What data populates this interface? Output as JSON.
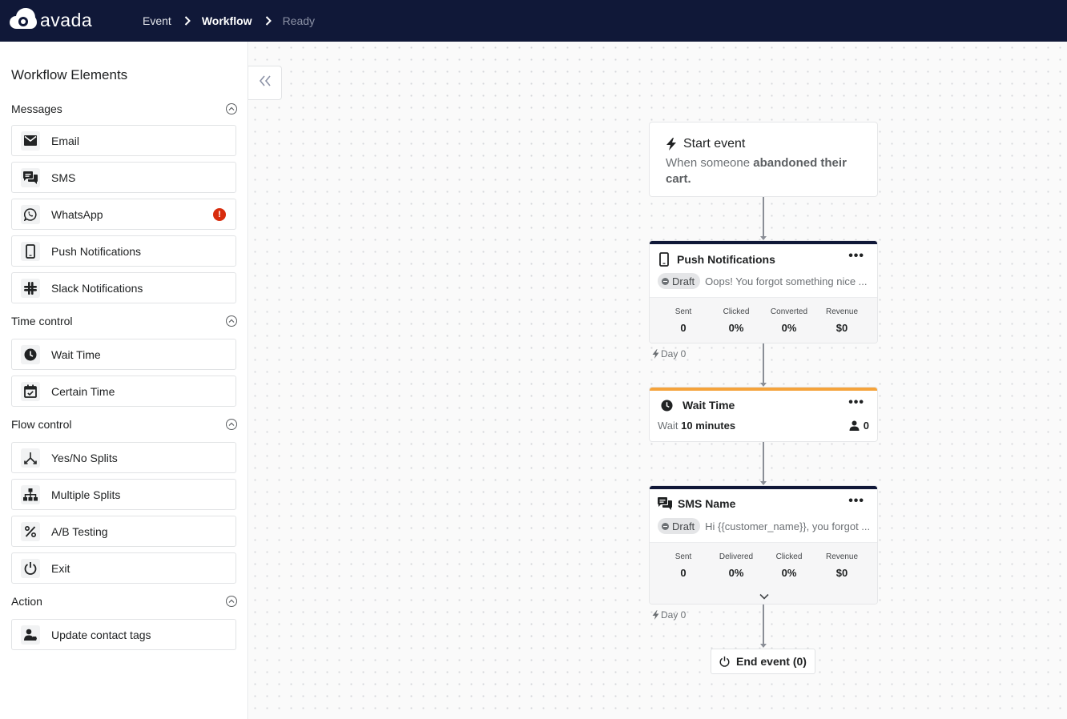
{
  "header": {
    "logo_text": "avada",
    "breadcrumbs": [
      "Event",
      "Workflow",
      "Ready"
    ]
  },
  "sidebar": {
    "title": "Workflow Elements",
    "sections": [
      {
        "title": "Messages",
        "items": [
          {
            "label": "Email",
            "icon": "envelope-icon"
          },
          {
            "label": "SMS",
            "icon": "chat-bubbles-icon"
          },
          {
            "label": "WhatsApp",
            "icon": "whatsapp-icon",
            "alert": "!"
          },
          {
            "label": "Push Notifications",
            "icon": "mobile-icon"
          },
          {
            "label": "Slack Notifications",
            "icon": "slack-icon"
          }
        ]
      },
      {
        "title": "Time control",
        "items": [
          {
            "label": "Wait Time",
            "icon": "clock-icon"
          },
          {
            "label": "Certain Time",
            "icon": "calendar-check-icon"
          }
        ]
      },
      {
        "title": "Flow control",
        "items": [
          {
            "label": "Yes/No Splits",
            "icon": "split-icon"
          },
          {
            "label": "Multiple Splits",
            "icon": "sitemap-icon"
          },
          {
            "label": "A/B Testing",
            "icon": "percent-icon"
          },
          {
            "label": "Exit",
            "icon": "power-icon"
          }
        ]
      },
      {
        "title": "Action",
        "items": [
          {
            "label": "Update contact tags",
            "icon": "user-tag-icon"
          }
        ]
      }
    ]
  },
  "workflow": {
    "start": {
      "title": "Start event",
      "desc_prefix": "When someone ",
      "desc_bold": "abandoned their cart."
    },
    "push": {
      "title": "Push Notifications",
      "menu": "•••",
      "status": "Draft",
      "preview": "Oops! You forgot something nice ...",
      "stats": [
        {
          "label": "Sent",
          "value": "0"
        },
        {
          "label": "Clicked",
          "value": "0%"
        },
        {
          "label": "Converted",
          "value": "0%"
        },
        {
          "label": "Revenue",
          "value": "$0"
        }
      ],
      "day": "Day 0"
    },
    "wait": {
      "title": "Wait Time",
      "menu": "•••",
      "prefix": "Wait ",
      "duration": "10 minutes",
      "count": "0"
    },
    "sms": {
      "title": "SMS Name",
      "menu": "•••",
      "status": "Draft",
      "preview": "Hi {{customer_name}}, you forgot ...",
      "stats": [
        {
          "label": "Sent",
          "value": "0"
        },
        {
          "label": "Delivered",
          "value": "0%"
        },
        {
          "label": "Clicked",
          "value": "0%"
        },
        {
          "label": "Revenue",
          "value": "$0"
        }
      ],
      "day": "Day 0"
    },
    "end": {
      "label": "End event (0)"
    }
  },
  "colors": {
    "topbar": "#101838",
    "alert": "#d82c0d",
    "wait_accent": "#f5a33b"
  }
}
